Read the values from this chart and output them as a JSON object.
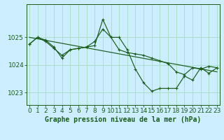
{
  "bg_color": "#cceeff",
  "grid_color": "#aaddcc",
  "line_color": "#1a5c1a",
  "title": "Graphe pression niveau de la mer (hPa)",
  "xlim": [
    -0.3,
    23.3
  ],
  "ylim": [
    1022.55,
    1026.2
  ],
  "yticks": [
    1023,
    1024,
    1025
  ],
  "xticks": [
    0,
    1,
    2,
    3,
    4,
    5,
    6,
    7,
    8,
    9,
    10,
    11,
    12,
    13,
    14,
    15,
    16,
    17,
    18,
    19,
    20,
    21,
    22,
    23
  ],
  "series1_x": [
    0,
    1,
    2,
    3,
    4,
    5,
    6,
    7,
    8,
    9,
    10,
    11,
    12,
    13,
    14,
    15,
    16,
    17,
    18,
    19,
    20,
    21,
    22,
    23
  ],
  "series1_y": [
    1024.75,
    1025.0,
    1024.9,
    1024.65,
    1024.25,
    1024.55,
    1024.6,
    1024.65,
    1024.7,
    1025.65,
    1025.0,
    1025.0,
    1024.55,
    1023.85,
    1023.35,
    1023.05,
    1023.15,
    1023.15,
    1023.15,
    1023.6,
    1023.45,
    1023.9,
    1023.7,
    1023.9
  ],
  "series2_x": [
    0,
    1,
    2,
    3,
    4,
    5,
    6,
    7,
    8,
    9,
    10,
    11,
    12,
    13,
    14,
    15,
    16,
    17,
    18,
    19,
    20,
    21,
    22,
    23
  ],
  "series2_y": [
    1024.75,
    1025.0,
    1024.85,
    1024.6,
    1024.35,
    1024.55,
    1024.6,
    1024.65,
    1024.85,
    1025.3,
    1025.0,
    1024.55,
    1024.45,
    1024.4,
    1024.35,
    1024.25,
    1024.15,
    1024.05,
    1023.75,
    1023.65,
    1023.9,
    1023.85,
    1023.95,
    1023.9
  ],
  "series3_x": [
    0,
    23
  ],
  "series3_y": [
    1025.0,
    1023.75
  ],
  "tick_fontsize": 6.5,
  "title_fontsize": 7.0
}
